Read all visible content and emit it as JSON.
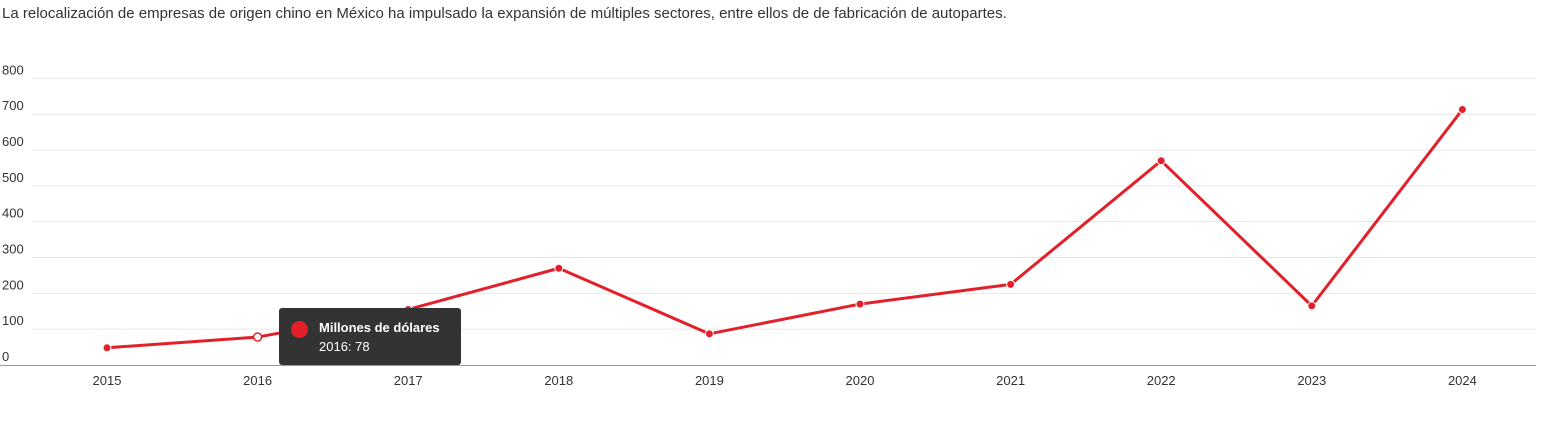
{
  "subtitle": "La relocalización de empresas de origen chino en México ha impulsado la expansión de múltiples sectores, entre ellos de de fabricación de autopartes.",
  "colors": {
    "line": "#e3202a",
    "grid": "#e6e6e6",
    "axis": "#999999",
    "tooltip_bg": "#333333"
  },
  "tooltip": {
    "series": "Millones de dólares",
    "value_text": "2016: 78"
  },
  "chart_data": {
    "type": "line",
    "categories": [
      "2015",
      "2016",
      "2017",
      "2018",
      "2019",
      "2020",
      "2021",
      "2022",
      "2023",
      "2024"
    ],
    "series": [
      {
        "name": "Millones de dólares",
        "values": [
          48,
          78,
          155,
          270,
          87,
          170,
          225,
          570,
          165,
          713
        ]
      }
    ],
    "ylim": [
      0,
      800
    ],
    "yticks": [
      0,
      100,
      200,
      300,
      400,
      500,
      600,
      700,
      800
    ],
    "grid": true,
    "highlighted_point": 1
  }
}
